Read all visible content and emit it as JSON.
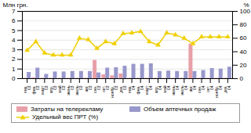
{
  "chart_data": {
    "type": "bar",
    "categories": [
      "янв.\n03",
      "фев.\n03",
      "март\n03",
      "апр.\n03",
      "май\n03",
      "июнь\n03",
      "июль\n03",
      "авг.\n03",
      "сен.\n03",
      "окт.\n03",
      "ноябр.\n03",
      "дек.\n03",
      "янв.\n04",
      "фев.\n04",
      "март\n04",
      "апр.\n04",
      "май\n04",
      "июнь\n04",
      "июль\n04",
      "авг.\n04",
      "сен.\n04",
      "окт.\n04",
      "ноябр.\n04",
      "дек.\n04"
    ],
    "series": [
      {
        "name": "Затраты на телерекламу",
        "type": "bar",
        "color": "#e8a0a8",
        "values": [
          0.05,
          0.08,
          0.05,
          0.05,
          0.05,
          0.05,
          0.05,
          0.05,
          1.9,
          0.4,
          0.3,
          0.5,
          0.05,
          0.05,
          0.05,
          0.05,
          0.05,
          0.05,
          0.05,
          3.6,
          0.05,
          0.05,
          0.05,
          0.05
        ]
      },
      {
        "name": "Объем аптечных продаж",
        "type": "bar",
        "color": "#9898cc",
        "values": [
          0.65,
          1.1,
          0.45,
          0.7,
          0.7,
          0.75,
          0.75,
          0.75,
          0.6,
          1.1,
          1.15,
          1.3,
          1.5,
          1.5,
          1.55,
          0.75,
          0.8,
          0.75,
          0.75,
          0.75,
          0.85,
          1.05,
          1.0,
          1.2
        ]
      },
      {
        "name": "Удельный вес ПРТ (%)",
        "type": "line",
        "axis": "y2",
        "color": "#f0d000",
        "marker": "triangle",
        "values": [
          42,
          55,
          38,
          35,
          35,
          35,
          60,
          58,
          45,
          55,
          52,
          67,
          68,
          70,
          55,
          50,
          68,
          65,
          60,
          52,
          62,
          62,
          62,
          62
        ]
      }
    ],
    "ylabel": "Млн грн.",
    "y2label": "%",
    "ylim": [
      0,
      7
    ],
    "yticks": [
      0,
      1,
      2,
      3,
      4,
      5,
      6,
      7
    ],
    "y2lim": [
      0,
      100
    ],
    "y2ticks": [
      0,
      20,
      40,
      60,
      80,
      100
    ],
    "grid": true,
    "legend": "bottom"
  }
}
